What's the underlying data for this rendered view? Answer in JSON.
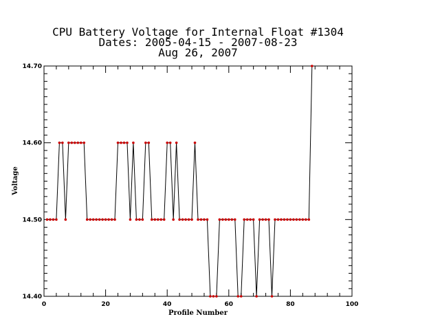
{
  "chart_data": {
    "type": "line",
    "title_lines": [
      "CPU Battery Voltage for Internal Float #1304",
      "Dates:  2005-04-15 -  2007-08-23",
      "Aug 26, 2007"
    ],
    "xlabel": "Profile Number",
    "ylabel": "Voltage",
    "xlim": [
      0,
      100
    ],
    "ylim": [
      14.4,
      14.7
    ],
    "x_ticks": [
      0,
      20,
      40,
      60,
      80,
      100
    ],
    "x_tick_labels": [
      "0",
      "20",
      "40",
      "60",
      "80",
      "100"
    ],
    "y_ticks": [
      14.4,
      14.5,
      14.6,
      14.7
    ],
    "y_tick_labels": [
      "14.40",
      "14.50",
      "14.60",
      "14.70"
    ],
    "grid": false,
    "line_color": "#000000",
    "marker_color": "#cc0000",
    "series": [
      {
        "x": [
          1,
          2,
          3,
          4,
          5,
          6,
          7,
          8,
          9,
          10,
          11,
          12,
          13,
          14,
          15,
          16,
          17,
          18,
          19,
          20,
          21,
          22,
          23,
          24,
          25,
          26,
          27,
          28,
          29,
          30,
          31,
          32,
          33,
          34,
          35,
          36,
          37,
          38,
          39,
          40,
          41,
          42,
          43,
          44,
          45,
          46,
          47,
          48,
          49,
          50,
          51,
          52,
          53,
          54,
          55,
          56,
          57,
          58,
          59,
          60,
          61,
          62,
          63,
          64,
          65,
          66,
          67,
          68,
          69,
          70,
          71,
          72,
          73,
          74,
          75,
          76,
          77,
          78,
          79,
          80,
          81,
          82,
          83,
          84,
          85,
          86,
          87
        ],
        "y": [
          14.5,
          14.5,
          14.5,
          14.5,
          14.6,
          14.6,
          14.5,
          14.6,
          14.6,
          14.6,
          14.6,
          14.6,
          14.6,
          14.5,
          14.5,
          14.5,
          14.5,
          14.5,
          14.5,
          14.5,
          14.5,
          14.5,
          14.5,
          14.6,
          14.6,
          14.6,
          14.6,
          14.5,
          14.6,
          14.5,
          14.5,
          14.5,
          14.6,
          14.6,
          14.5,
          14.5,
          14.5,
          14.5,
          14.5,
          14.6,
          14.6,
          14.5,
          14.6,
          14.5,
          14.5,
          14.5,
          14.5,
          14.5,
          14.6,
          14.5,
          14.5,
          14.5,
          14.5,
          14.4,
          14.4,
          14.4,
          14.5,
          14.5,
          14.5,
          14.5,
          14.5,
          14.5,
          14.4,
          14.4,
          14.5,
          14.5,
          14.5,
          14.5,
          14.4,
          14.5,
          14.5,
          14.5,
          14.5,
          14.4,
          14.5,
          14.5,
          14.5,
          14.5,
          14.5,
          14.5,
          14.5,
          14.5,
          14.5,
          14.5,
          14.5,
          14.5,
          14.7
        ]
      }
    ]
  }
}
